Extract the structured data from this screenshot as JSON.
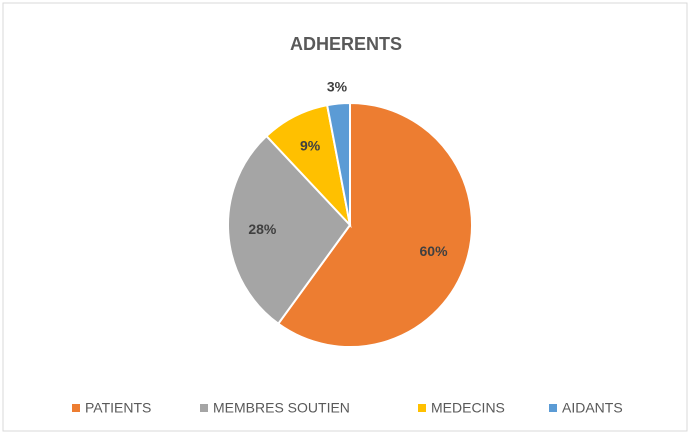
{
  "chart_data": {
    "type": "pie",
    "title": "ADHERENTS",
    "categories": [
      "PATIENTS",
      "MEMBRES SOUTIEN",
      "MEDECINS",
      "AIDANTS"
    ],
    "values": [
      60,
      28,
      9,
      3
    ],
    "value_labels": [
      "60%",
      "28%",
      "9%",
      "3%"
    ],
    "colors": [
      "#ed7d31",
      "#a5a5a5",
      "#ffc000",
      "#5b9bd5"
    ],
    "legend": "bottom"
  }
}
